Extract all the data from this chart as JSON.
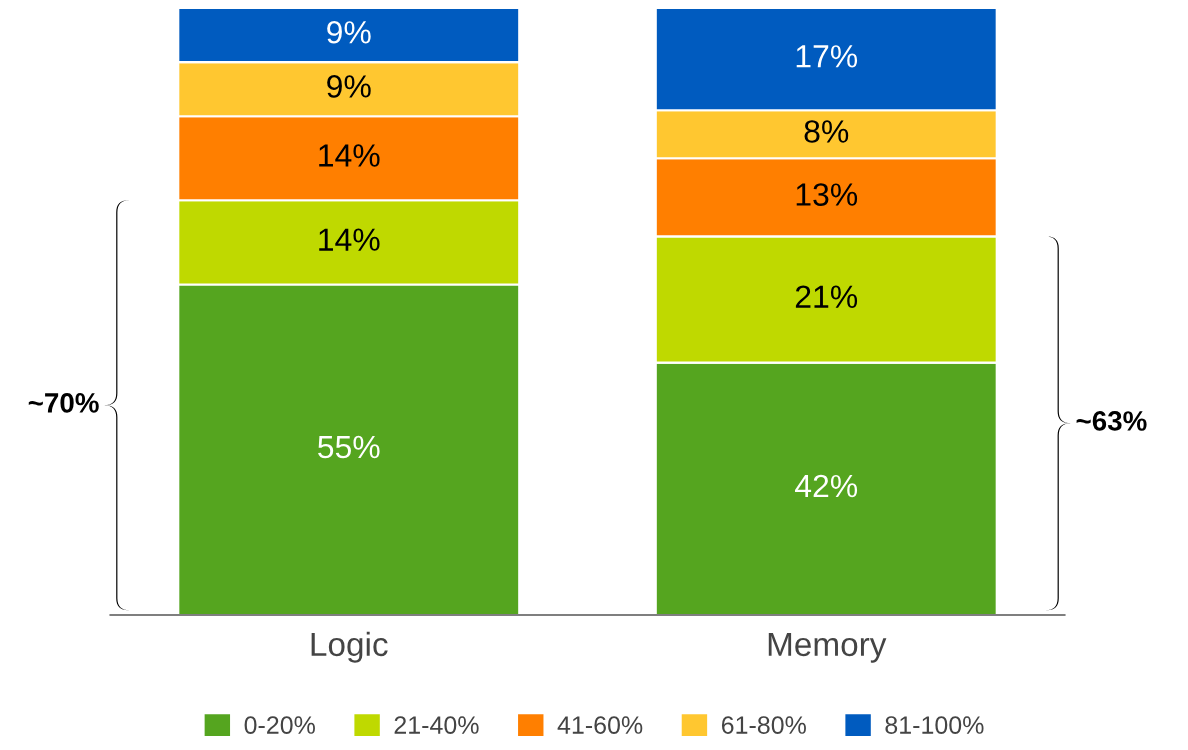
{
  "chart_data": {
    "type": "bar",
    "stacked": true,
    "categories": [
      "Logic",
      "Memory"
    ],
    "series": [
      {
        "name": "0-20%",
        "color": "#55a51f",
        "values": [
          55,
          42
        ],
        "value_labels": [
          "55%",
          "42%"
        ]
      },
      {
        "name": "21-40%",
        "color": "#bfd900",
        "values": [
          14,
          21
        ],
        "value_labels": [
          "14%",
          "21%"
        ]
      },
      {
        "name": "41-60%",
        "color": "#ff7f00",
        "values": [
          14,
          13
        ],
        "value_labels": [
          "14%",
          "13%"
        ]
      },
      {
        "name": "61-80%",
        "color": "#ffc730",
        "values": [
          9,
          8
        ],
        "value_labels": [
          "9%",
          "8%"
        ]
      },
      {
        "name": "81-100%",
        "color": "#005bbf",
        "values": [
          9,
          17
        ],
        "value_labels": [
          "9%",
          "17%"
        ]
      }
    ],
    "legend": "bottom",
    "grid": false,
    "annotations": [
      "~70%",
      "~63%"
    ]
  }
}
